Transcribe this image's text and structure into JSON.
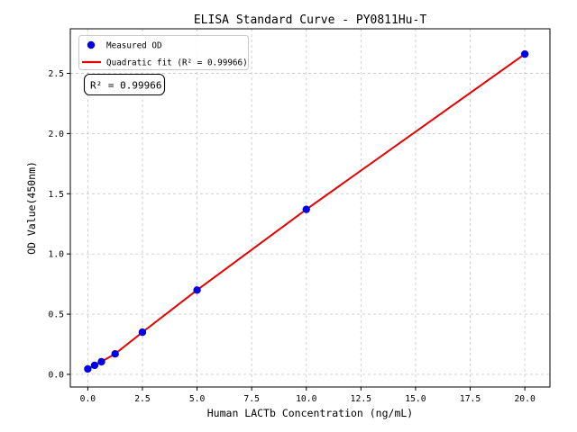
{
  "chart_data": {
    "type": "scatter",
    "title": "ELISA Standard Curve - PY0811Hu-T",
    "xlabel": "Human LACTb Concentration (ng/mL)",
    "ylabel": "OD Value(450nm)",
    "xlim": [
      -0.8,
      21.15
    ],
    "ylim": [
      -0.105,
      2.87
    ],
    "xticks": [
      0,
      2.5,
      5,
      7.5,
      10,
      12.5,
      15,
      17.5,
      20
    ],
    "yticks": [
      0,
      0.5,
      1,
      1.5,
      2,
      2.5
    ],
    "grid": true,
    "grid_style": "dashed",
    "legend_position": "upper left",
    "legend": {
      "entries": [
        {
          "label": "Measured OD",
          "type": "marker",
          "color": "#0000e6"
        },
        {
          "label": "Quadratic fit (R² = 0.99966)",
          "type": "line",
          "color": "#e60000"
        }
      ]
    },
    "annotation": {
      "text": "R² = 0.99966"
    },
    "r_squared": 0.99966,
    "colors": {
      "points": "#0000e6",
      "fit_line": "#e60000",
      "grid": "#cccccc",
      "axes": "#000000"
    },
    "series": [
      {
        "name": "Measured OD",
        "type": "scatter",
        "color": "#0000e6",
        "points": [
          [
            0,
            0.045
          ],
          [
            0.312,
            0.075
          ],
          [
            0.625,
            0.105
          ],
          [
            1.25,
            0.17
          ],
          [
            2.5,
            0.35
          ],
          [
            5,
            0.7
          ],
          [
            10,
            1.37
          ],
          [
            20,
            2.66
          ]
        ]
      },
      {
        "name": "Quadratic fit",
        "type": "line",
        "color": "#e60000",
        "x_range": [
          0,
          20
        ],
        "points": [
          [
            0,
            0.045
          ],
          [
            0.312,
            0.075
          ],
          [
            0.625,
            0.105
          ],
          [
            1.25,
            0.17
          ],
          [
            2.5,
            0.35
          ],
          [
            5,
            0.7
          ],
          [
            10,
            1.37
          ],
          [
            20,
            2.66
          ]
        ]
      }
    ]
  }
}
